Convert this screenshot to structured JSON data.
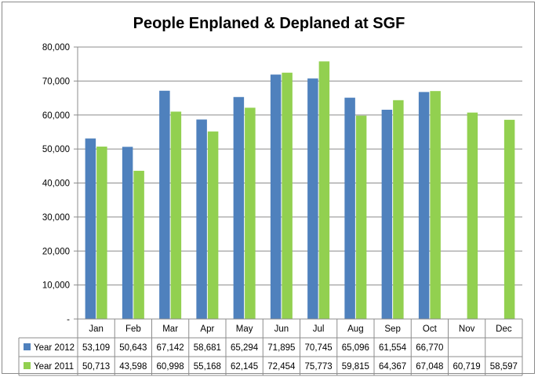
{
  "chart_data": {
    "type": "bar",
    "title": "People Enplaned & Deplaned at SGF",
    "xlabel": "",
    "ylabel": "",
    "ylim": [
      0,
      80000
    ],
    "yticks": [
      0,
      10000,
      20000,
      30000,
      40000,
      50000,
      60000,
      70000,
      80000
    ],
    "ytick_labels": [
      "-",
      "10,000",
      "20,000",
      "30,000",
      "40,000",
      "50,000",
      "60,000",
      "70,000",
      "80,000"
    ],
    "grid": true,
    "legend": "data-table",
    "categories": [
      "Jan",
      "Feb",
      "Mar",
      "Apr",
      "May",
      "Jun",
      "Jul",
      "Aug",
      "Sep",
      "Oct",
      "Nov",
      "Dec"
    ],
    "series": [
      {
        "name": "Year 2012",
        "color": "#4f81bd",
        "values": [
          53109,
          50643,
          67142,
          58681,
          65294,
          71895,
          70745,
          65096,
          61554,
          66770,
          null,
          null
        ],
        "labels": [
          "53,109",
          "50,643",
          "67,142",
          "58,681",
          "65,294",
          "71,895",
          "70,745",
          "65,096",
          "61,554",
          "66,770",
          "",
          ""
        ]
      },
      {
        "name": "Year 2011",
        "color": "#92d050",
        "values": [
          50713,
          43598,
          60998,
          55168,
          62145,
          72454,
          75773,
          59815,
          64367,
          67048,
          60719,
          58597
        ],
        "labels": [
          "50,713",
          "43,598",
          "60,998",
          "55,168",
          "62,145",
          "72,454",
          "75,773",
          "59,815",
          "64,367",
          "67,048",
          "60,719",
          "58,597"
        ]
      }
    ]
  }
}
